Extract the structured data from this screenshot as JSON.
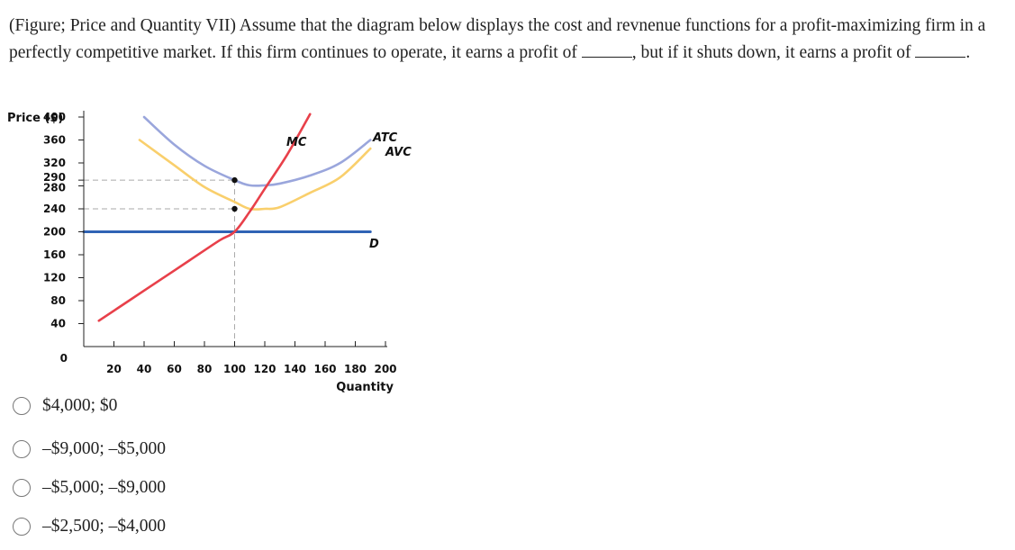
{
  "question": {
    "part1": "(Figure; Price and Quantity VII) Assume that the diagram below displays the cost and revnenue functions for a profit-maximizing firm in a perfectly competitive market. If this firm continues to operate, it earns a profit of ",
    "part2": ", but if it shuts down, it earns a profit of ",
    "part3": "."
  },
  "chart_data": {
    "type": "line",
    "ylabel": "Price ($)",
    "xlabel": "Quantity",
    "xlim": [
      0,
      200
    ],
    "ylim": [
      0,
      400
    ],
    "x_ticks": [
      20,
      40,
      60,
      80,
      100,
      120,
      140,
      160,
      180,
      200
    ],
    "y_ticks": [
      400,
      360,
      320,
      290,
      280,
      240,
      200,
      160,
      120,
      80,
      40
    ],
    "origin_label": "0",
    "series": [
      {
        "name": "MC",
        "color": "#e8404a",
        "x": [
          10,
          30,
          50,
          70,
          90,
          100,
          110,
          120,
          135,
          150
        ],
        "y": [
          45,
          80,
          115,
          150,
          185,
          200,
          235,
          275,
          335,
          405
        ]
      },
      {
        "name": "ATC",
        "color": "#9aa6dc",
        "x": [
          40,
          60,
          80,
          100,
          110,
          120,
          130,
          150,
          170,
          190
        ],
        "y": [
          400,
          352,
          315,
          290,
          281,
          281,
          284,
          298,
          320,
          360
        ]
      },
      {
        "name": "AVC",
        "color": "#f9cf6c",
        "x": [
          37,
          60,
          80,
          100,
          110,
          120,
          130,
          150,
          170,
          190
        ],
        "y": [
          360,
          316,
          278,
          252,
          240,
          240,
          243,
          268,
          295,
          345
        ]
      },
      {
        "name": "D",
        "color": "#2f63b5",
        "x": [
          0,
          190
        ],
        "y": [
          200,
          200
        ]
      }
    ],
    "points": [
      {
        "x": 100,
        "y": 290
      },
      {
        "x": 100,
        "y": 240
      }
    ],
    "dashed_guides": [
      {
        "y": 290,
        "x": 100
      },
      {
        "y": 240,
        "x": 100
      }
    ]
  },
  "options": [
    {
      "label": "$4,000; $0"
    },
    {
      "label": "–$9,000; –$5,000"
    },
    {
      "label": "–$5,000; –$9,000"
    },
    {
      "label": "–$2,500; –$4,000"
    }
  ]
}
